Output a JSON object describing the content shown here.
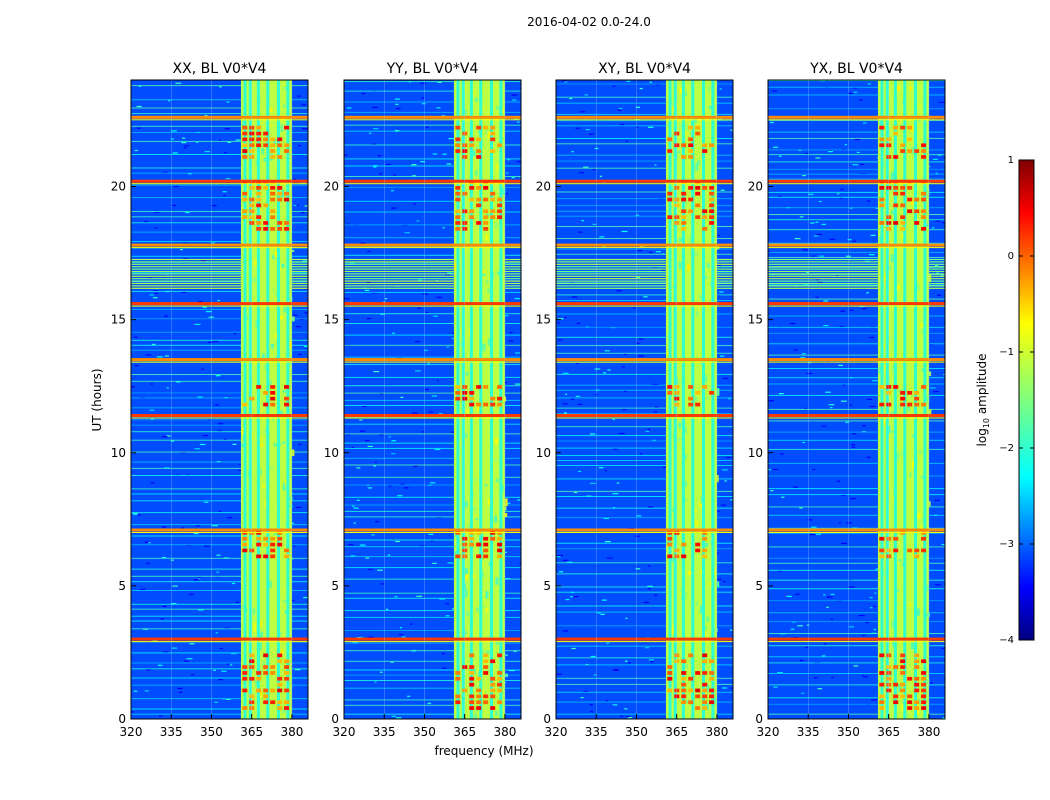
{
  "figure_title": "2016-04-02 0.0-24.0",
  "chart_data": {
    "type": "heatmap",
    "suptitle": "2016-04-02 0.0-24.0",
    "xlabel": "frequency (MHz)",
    "ylabel": "UT (hours)",
    "xlim": [
      320,
      386
    ],
    "ylim": [
      0,
      24
    ],
    "xticks": [
      320,
      335,
      350,
      365,
      380
    ],
    "yticks": [
      0,
      5,
      10,
      15,
      20
    ],
    "panels": [
      {
        "title": "XX, BL V0*V4"
      },
      {
        "title": "YY, BL V0*V4"
      },
      {
        "title": "XY, BL V0*V4"
      },
      {
        "title": "YX, BL V0*V4"
      }
    ],
    "colorbar": {
      "label": "log10 amplitude",
      "label_base": "log",
      "label_sub": "10",
      "label_rest": " amplitude",
      "range": [
        -4,
        1
      ],
      "ticks": [
        1,
        0,
        -1,
        -2,
        -3,
        -4
      ],
      "tick_labels": [
        "1",
        "0",
        "−1",
        "−2",
        "−3",
        "−4"
      ],
      "colormap": "jet",
      "colors": [
        "#00007f",
        "#0000ff",
        "#007fff",
        "#00ffff",
        "#7fff7f",
        "#ffff00",
        "#ff7f00",
        "#ff0000",
        "#7f0000"
      ]
    },
    "rfi_band_mhz": [
      361,
      380
    ],
    "rfi_band_columns_mhz": [
      362.5,
      364.5,
      367.5,
      371.0,
      375.0,
      378.5
    ],
    "strong_rfi_rows_ut": [
      3.0,
      7.1,
      11.4,
      13.5,
      15.6,
      17.8,
      20.2,
      22.6
    ],
    "dense_rfi_block_ut": [
      16.2,
      17.3
    ],
    "background_level": -3,
    "band_level": -1.2,
    "hot_cells_ut": [
      [
        18.3,
        20.1
      ],
      [
        21.0,
        22.2
      ],
      [
        11.7,
        12.4
      ],
      [
        6.0,
        7.0
      ],
      [
        0.3,
        2.5
      ]
    ]
  }
}
